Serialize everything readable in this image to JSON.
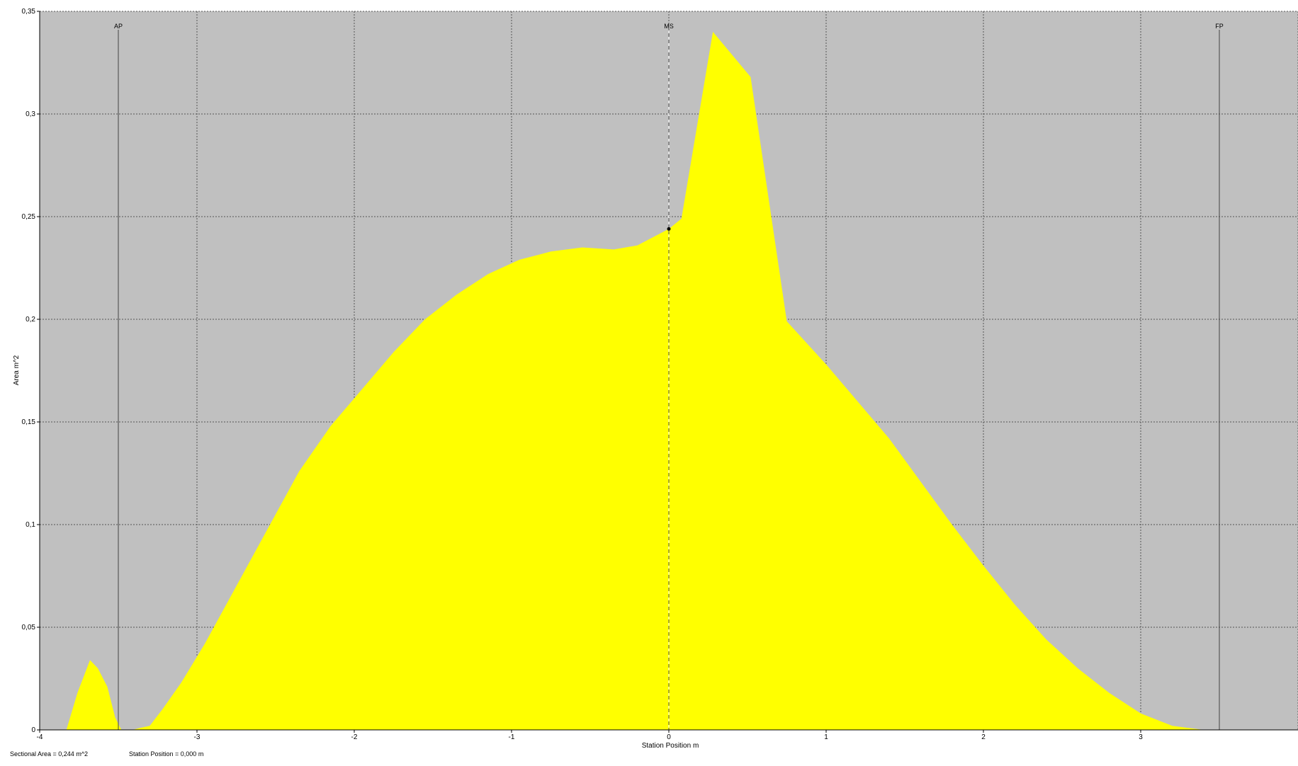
{
  "chart_data": {
    "type": "area",
    "title": "",
    "xlabel": "Station Position  m",
    "ylabel": "Area  m^2",
    "xlim": [
      -4,
      4
    ],
    "ylim": [
      0,
      0.35
    ],
    "grid": true,
    "x_ticks": [
      "-4",
      "-3",
      "-2",
      "-1",
      "0",
      "1",
      "2",
      "3"
    ],
    "x_tick_values": [
      -4,
      -3,
      -2,
      -1,
      0,
      1,
      2,
      3
    ],
    "y_ticks": [
      "0",
      "0,05",
      "0,1",
      "0,15",
      "0,2",
      "0,25",
      "0,3",
      "0,35"
    ],
    "y_tick_values": [
      0,
      0.05,
      0.1,
      0.15,
      0.2,
      0.25,
      0.3,
      0.35
    ],
    "colors": {
      "plot_background": "#c0c0c0",
      "fill": "#ffff00",
      "grid": "#555555",
      "marker_line": "#444444"
    },
    "series": [
      {
        "x": [
          -3.83,
          -3.76,
          -3.68,
          -3.63,
          -3.57,
          -3.52,
          -3.48,
          -3.41,
          -3.36,
          -3.3,
          -3.22,
          -3.1,
          -2.95,
          -2.75,
          -2.55,
          -2.35,
          -2.15,
          -1.95,
          -1.75,
          -1.55,
          -1.35,
          -1.15,
          -0.95,
          -0.75,
          -0.55,
          -0.35,
          -0.2,
          -0.1,
          0.0,
          0.08,
          0.28,
          0.52,
          0.75,
          1.0,
          1.2,
          1.4,
          1.6,
          1.8,
          2.0,
          2.2,
          2.4,
          2.6,
          2.8,
          3.0,
          3.2,
          3.4,
          3.5
        ],
        "y": [
          0.0,
          0.018,
          0.034,
          0.03,
          0.021,
          0.006,
          0.0,
          0.0,
          0.001,
          0.002,
          0.01,
          0.023,
          0.042,
          0.07,
          0.098,
          0.126,
          0.148,
          0.166,
          0.184,
          0.2,
          0.212,
          0.222,
          0.229,
          0.233,
          0.235,
          0.234,
          0.236,
          0.24,
          0.244,
          0.249,
          0.34,
          0.318,
          0.199,
          0.178,
          0.16,
          0.142,
          0.121,
          0.1,
          0.08,
          0.061,
          0.044,
          0.03,
          0.018,
          0.008,
          0.002,
          0.0,
          0.0
        ]
      }
    ],
    "markers": [
      {
        "label": "AP",
        "x": -3.5,
        "style": "solid"
      },
      {
        "label": "MS",
        "x": 0.0,
        "style": "dashed"
      },
      {
        "label": "FP",
        "x": 3.5,
        "style": "solid"
      }
    ],
    "cursor_point": {
      "x": 0.0,
      "y": 0.244
    }
  },
  "status": {
    "sectional_area": "Sectional Area =  0,244 m^2",
    "station_position": "Station Position =  0,000 m"
  }
}
